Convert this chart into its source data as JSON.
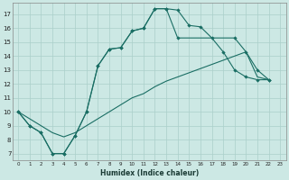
{
  "xlabel": "Humidex (Indice chaleur)",
  "bg_color": "#cce8e4",
  "grid_color": "#aacfca",
  "line_color": "#1a6e64",
  "xlim": [
    -0.5,
    23.5
  ],
  "ylim": [
    6.5,
    17.8
  ],
  "yticks": [
    7,
    8,
    9,
    10,
    11,
    12,
    13,
    14,
    15,
    16,
    17
  ],
  "xticks": [
    0,
    1,
    2,
    3,
    4,
    5,
    6,
    7,
    8,
    9,
    10,
    11,
    12,
    13,
    14,
    15,
    16,
    17,
    18,
    19,
    20,
    21,
    22,
    23
  ],
  "curve1_x": [
    0,
    1,
    2,
    3,
    4,
    5,
    6,
    7,
    8,
    9,
    10,
    11,
    12,
    13,
    14,
    15,
    16,
    17,
    18,
    19,
    20,
    21,
    22
  ],
  "curve1_y": [
    10,
    9,
    8.5,
    7,
    7,
    8.3,
    10.0,
    13.3,
    14.5,
    14.6,
    15.8,
    16.0,
    17.4,
    17.4,
    17.3,
    16.2,
    16.1,
    15.3,
    14.3,
    13.0,
    12.5,
    12.3,
    12.3
  ],
  "curve2_x": [
    0,
    1,
    2,
    3,
    4,
    5,
    6,
    7,
    8,
    9,
    10,
    11,
    12,
    13,
    14,
    19,
    20,
    21,
    22
  ],
  "curve2_y": [
    10,
    9,
    8.5,
    7,
    7,
    8.3,
    10.0,
    13.3,
    14.5,
    14.6,
    15.8,
    16.0,
    17.4,
    17.4,
    15.3,
    15.3,
    14.3,
    13.0,
    12.3
  ],
  "curve3_x": [
    0,
    1,
    2,
    3,
    4,
    5,
    6,
    7,
    8,
    9,
    10,
    11,
    12,
    13,
    14,
    15,
    16,
    17,
    18,
    19,
    20,
    21,
    22
  ],
  "curve3_y": [
    10,
    9.5,
    9.0,
    8.5,
    8.2,
    8.5,
    9.0,
    9.5,
    10.0,
    10.5,
    11.0,
    11.3,
    11.8,
    12.2,
    12.5,
    12.8,
    13.1,
    13.4,
    13.7,
    14.0,
    14.3,
    12.5,
    12.3
  ]
}
